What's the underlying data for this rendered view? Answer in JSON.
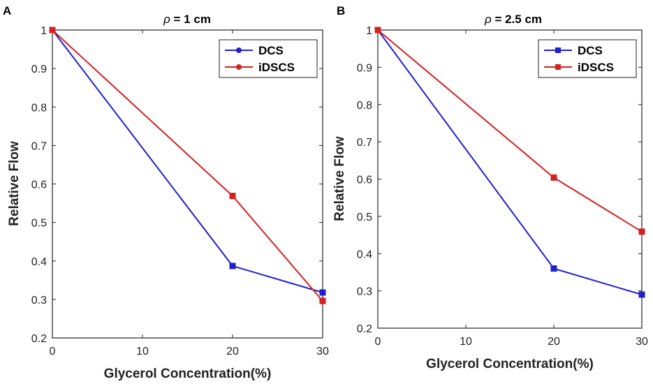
{
  "chart_data": [
    {
      "panel_label": "A",
      "type": "line",
      "title": "ρ = 1 cm",
      "xlabel": "Glycerol Concentration(%)",
      "ylabel": "Relative Flow",
      "xlim": [
        0,
        30
      ],
      "ylim": [
        0.2,
        1
      ],
      "x_ticks": [
        "0",
        "10",
        "20",
        "30"
      ],
      "y_ticks": [
        "0.2",
        "0.3",
        "0.4",
        "0.5",
        "0.6",
        "0.7",
        "0.8",
        "0.9",
        "1"
      ],
      "x": [
        0,
        20,
        30
      ],
      "series": [
        {
          "name": "DCS",
          "values": [
            1.0,
            0.387,
            0.318
          ],
          "color": "#1f1fcf",
          "legend_marker": "circle"
        },
        {
          "name": "iDSCS",
          "values": [
            1.0,
            0.569,
            0.296
          ],
          "color": "#d42020",
          "legend_marker": "circle"
        }
      ],
      "legend": "top-right",
      "grid": false
    },
    {
      "panel_label": "B",
      "type": "line",
      "title": "ρ = 2.5 cm",
      "xlabel": "Glycerol Concentration(%)",
      "ylabel": "Relative Flow",
      "xlim": [
        0,
        30
      ],
      "ylim": [
        0.2,
        1
      ],
      "x_ticks": [
        "0",
        "10",
        "20",
        "30"
      ],
      "y_ticks": [
        "0.2",
        "0.3",
        "0.4",
        "0.5",
        "0.6",
        "0.7",
        "0.8",
        "0.9",
        "1"
      ],
      "x": [
        0,
        20,
        30
      ],
      "series": [
        {
          "name": "DCS",
          "values": [
            1.0,
            0.36,
            0.29
          ],
          "color": "#1f1fcf",
          "legend_marker": "square"
        },
        {
          "name": "iDSCS",
          "values": [
            1.0,
            0.604,
            0.459
          ],
          "color": "#d42020",
          "legend_marker": "square"
        }
      ],
      "legend": "top-right",
      "grid": false
    }
  ]
}
